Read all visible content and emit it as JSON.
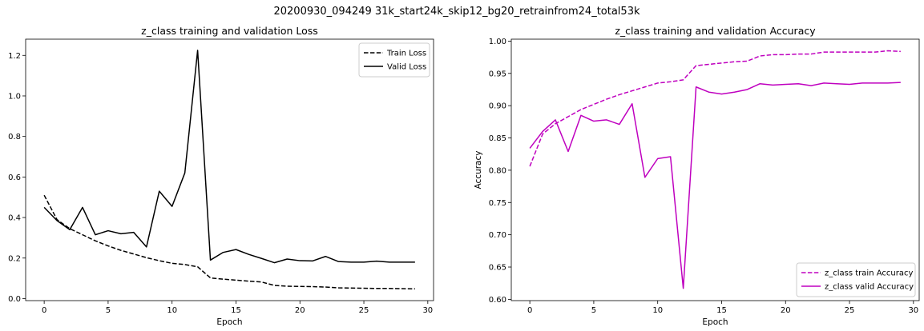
{
  "figure": {
    "suptitle": "20200930_094249 31k_start24k_skip12_bg20_retrainfrom24_total53k"
  },
  "chart_data": [
    {
      "type": "line",
      "title": "z_class training and validation Loss",
      "xlabel": "Epoch",
      "ylabel": "",
      "xlim": [
        -1.45,
        30.45
      ],
      "ylim": [
        -0.01,
        1.28
      ],
      "xticks": [
        0,
        5,
        10,
        15,
        20,
        25,
        30
      ],
      "yticks": [
        0.0,
        0.2,
        0.4,
        0.6,
        0.8,
        1.0,
        1.2
      ],
      "ytick_decimals": 1,
      "legend_position": "top-right",
      "grid": false,
      "x": [
        0,
        1,
        2,
        3,
        4,
        5,
        6,
        7,
        8,
        9,
        10,
        11,
        12,
        13,
        14,
        15,
        16,
        17,
        18,
        19,
        20,
        21,
        22,
        23,
        24,
        25,
        26,
        27,
        28,
        29
      ],
      "series": [
        {
          "name": "Train Loss",
          "color": "#000000",
          "dash": "dashed",
          "values": [
            0.51,
            0.39,
            0.345,
            0.315,
            0.285,
            0.26,
            0.238,
            0.22,
            0.202,
            0.187,
            0.174,
            0.168,
            0.157,
            0.102,
            0.096,
            0.091,
            0.086,
            0.082,
            0.065,
            0.061,
            0.06,
            0.059,
            0.057,
            0.053,
            0.052,
            0.051,
            0.05,
            0.05,
            0.049,
            0.048
          ]
        },
        {
          "name": "Valid Loss",
          "color": "#000000",
          "dash": "solid",
          "values": [
            0.45,
            0.385,
            0.34,
            0.45,
            0.315,
            0.335,
            0.32,
            0.327,
            0.255,
            0.53,
            0.455,
            0.62,
            1.225,
            0.19,
            0.228,
            0.242,
            0.218,
            0.198,
            0.177,
            0.195,
            0.187,
            0.186,
            0.208,
            0.183,
            0.18,
            0.18,
            0.185,
            0.18,
            0.18,
            0.18
          ]
        }
      ]
    },
    {
      "type": "line",
      "title": "z_class training and validation Accuracy",
      "xlabel": "Epoch",
      "ylabel": "Accuracy",
      "xlim": [
        -1.45,
        30.45
      ],
      "ylim": [
        0.598,
        1.003
      ],
      "xticks": [
        0,
        5,
        10,
        15,
        20,
        25,
        30
      ],
      "yticks": [
        0.6,
        0.65,
        0.7,
        0.75,
        0.8,
        0.85,
        0.9,
        0.95,
        1.0
      ],
      "ytick_decimals": 2,
      "legend_position": "bottom-right",
      "grid": false,
      "x": [
        0,
        1,
        2,
        3,
        4,
        5,
        6,
        7,
        8,
        9,
        10,
        11,
        12,
        13,
        14,
        15,
        16,
        17,
        18,
        19,
        20,
        21,
        22,
        23,
        24,
        25,
        26,
        27,
        28,
        29
      ],
      "series": [
        {
          "name": "z_class train Accuracy",
          "color": "#bf00bf",
          "dash": "dashed",
          "values": [
            0.806,
            0.856,
            0.872,
            0.883,
            0.894,
            0.902,
            0.91,
            0.917,
            0.923,
            0.929,
            0.935,
            0.937,
            0.94,
            0.962,
            0.964,
            0.966,
            0.968,
            0.969,
            0.977,
            0.979,
            0.979,
            0.98,
            0.98,
            0.983,
            0.983,
            0.983,
            0.983,
            0.983,
            0.985,
            0.984
          ]
        },
        {
          "name": "z_class valid Accuracy",
          "color": "#bf00bf",
          "dash": "solid",
          "values": [
            0.834,
            0.86,
            0.878,
            0.829,
            0.885,
            0.876,
            0.878,
            0.871,
            0.903,
            0.789,
            0.818,
            0.821,
            0.617,
            0.929,
            0.921,
            0.918,
            0.921,
            0.925,
            0.934,
            0.932,
            0.933,
            0.934,
            0.931,
            0.935,
            0.934,
            0.933,
            0.935,
            0.935,
            0.935,
            0.936
          ]
        }
      ]
    }
  ]
}
